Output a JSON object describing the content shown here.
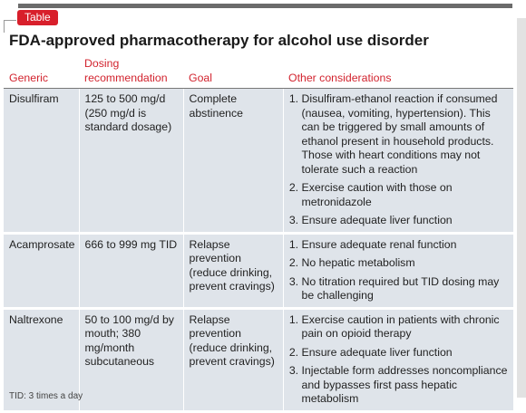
{
  "tag": "Table",
  "title": "FDA-approved pharmacotherapy for alcohol use disorder",
  "table": {
    "headers": [
      "Generic",
      "Dosing recommendation",
      "Goal",
      "Other considerations"
    ],
    "rows": [
      [
        "Disulfiram",
        "125 to 500 mg/d (250 mg/d is standard dosage)",
        "Complete abstinence",
        [
          "Disulfiram-ethanol reaction if consumed (nausea, vomiting, hypertension). This can be triggered by small amounts of ethanol present in household products. Those with heart conditions may not tolerate such a reaction",
          "Exercise caution with those on metronidazole",
          "Ensure adequate liver function"
        ]
      ],
      [
        "Acamprosate",
        "666 to 999 mg TID",
        "Relapse prevention (reduce drinking, prevent cravings)",
        [
          "Ensure adequate renal function",
          "No hepatic metabolism",
          "No titration required but TID dosing may be challenging"
        ]
      ],
      [
        "Naltrexone",
        "50 to 100 mg/d by mouth; 380 mg/month subcutaneous",
        "Relapse prevention (reduce drinking, prevent cravings)",
        [
          "Exercise caution in patients with chronic pain on opioid therapy",
          "Ensure adequate liver function",
          "Injectable form addresses noncompliance and bypasses first pass hepatic metabolism"
        ]
      ]
    ]
  },
  "footnote": "TID: 3 times a day"
}
